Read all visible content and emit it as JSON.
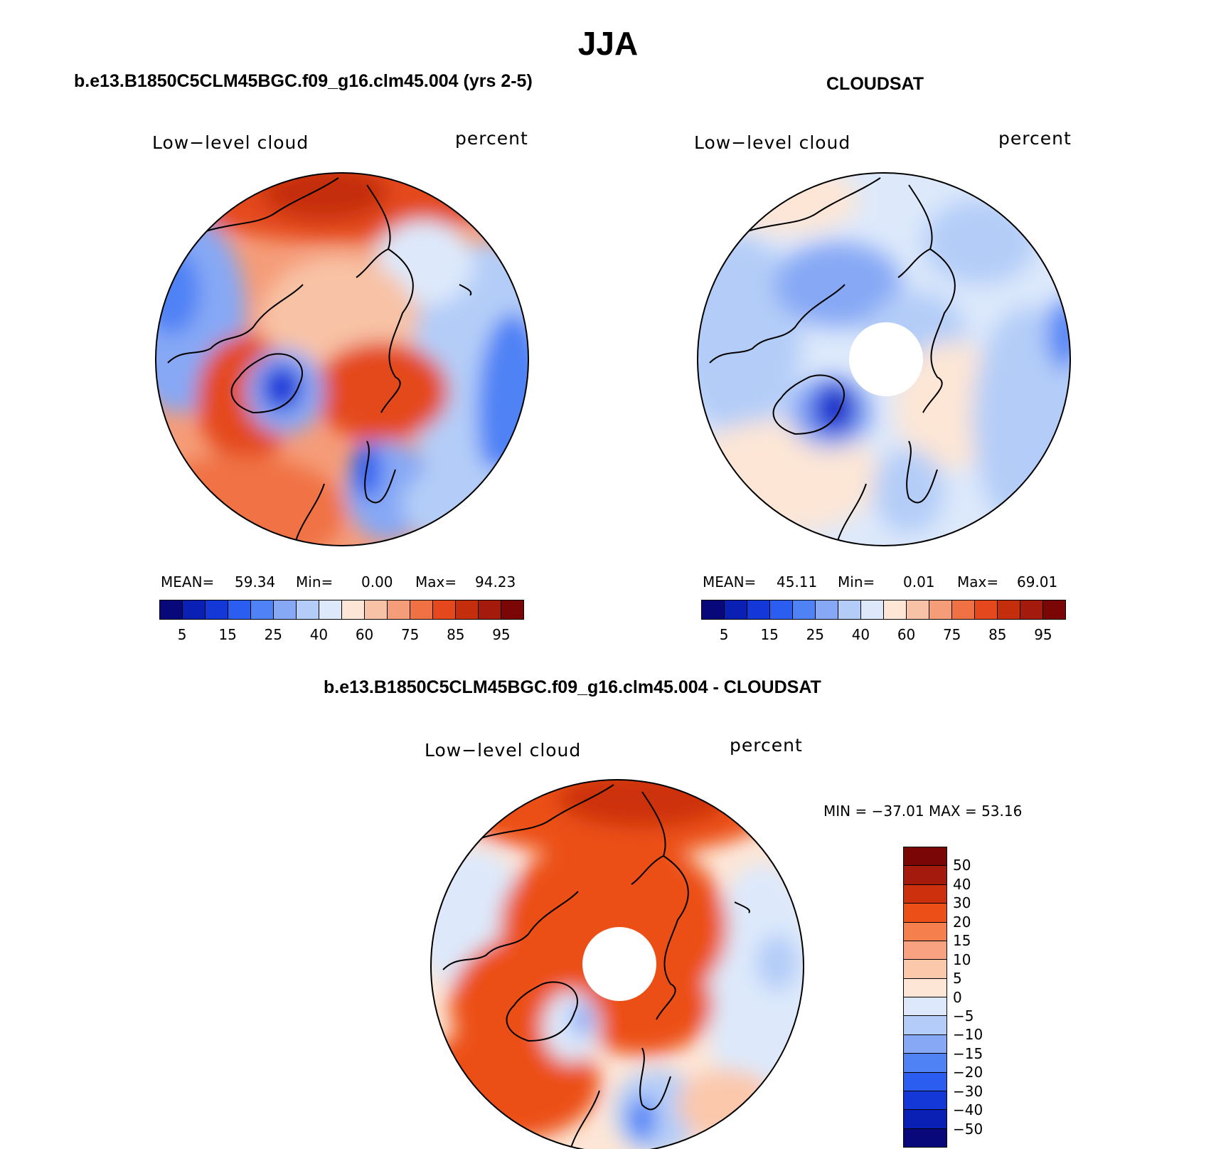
{
  "figure": {
    "title": "JJA"
  },
  "colors": {
    "seq": [
      "#08087a",
      "#0a1fb4",
      "#1438d8",
      "#2b5ef0",
      "#4f82f5",
      "#86a8f5",
      "#b4cdf8",
      "#dde9fb",
      "#fde6d6",
      "#f8c2a6",
      "#f59c78",
      "#f07244",
      "#e4481c",
      "#c52e0c",
      "#a41a0c",
      "#7a0606"
    ],
    "diff": [
      "#7a0606",
      "#a41a0c",
      "#cc300c",
      "#ec5018",
      "#f5804e",
      "#f8a282",
      "#fbc8ac",
      "#fde6d6",
      "#dde9fb",
      "#b4cdf8",
      "#86a8f5",
      "#4f82f5",
      "#2b5ef0",
      "#1438d8",
      "#0a1fb4",
      "#08087a"
    ]
  },
  "panels": {
    "model": {
      "title": "b.e13.B1850C5CLM45BGC.f09_g16.clm45.004 (yrs 2-5)",
      "var": "Low−level cloud",
      "units": "percent",
      "mean_label": "MEAN=",
      "mean": "59.34",
      "min_label": "Min=",
      "min": "0.00",
      "max_label": "Max=",
      "max": "94.23",
      "ticks": [
        "5",
        "15",
        "25",
        "40",
        "60",
        "75",
        "85",
        "95"
      ]
    },
    "obs": {
      "title": "CLOUDSAT",
      "var": "Low−level cloud",
      "units": "percent",
      "mean_label": "MEAN=",
      "mean": "45.11",
      "min_label": "Min=",
      "min": "0.01",
      "max_label": "Max=",
      "max": "69.01",
      "ticks": [
        "5",
        "15",
        "25",
        "40",
        "60",
        "75",
        "85",
        "95"
      ]
    },
    "diff": {
      "title": "b.e13.B1850C5CLM45BGC.f09_g16.clm45.004 - CLOUDSAT",
      "var": "Low−level cloud",
      "units": "percent",
      "minmax": "MIN = −37.01 MAX =  53.16",
      "ticks": [
        "50",
        "40",
        "30",
        "20",
        "15",
        "10",
        "5",
        "0",
        "−5",
        "−10",
        "−15",
        "−20",
        "−30",
        "−40",
        "−50"
      ]
    }
  }
}
